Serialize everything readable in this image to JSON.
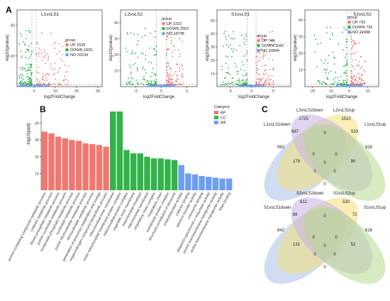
{
  "panel_labels": {
    "a": "A",
    "b": "B",
    "c": "C"
  },
  "colors": {
    "up": "#f07878",
    "down": "#2fb34a",
    "no": "#6f9fe6",
    "bp": "#f07870",
    "cc": "#33b24a",
    "mf": "#6d9ef0"
  },
  "chart_data": [
    {
      "type": "scatter",
      "title": "L1vsLS1",
      "xlabel": "log2FoldChange",
      "ylabel": "-log10(pvalue)",
      "xticks": [
        "0",
        "10",
        "20",
        "30"
      ],
      "yticks": [
        "20",
        "40"
      ],
      "xlim": [
        -8,
        32
      ],
      "ylim": [
        0,
        50
      ],
      "legend": {
        "title": "group",
        "placement": "center-right",
        "entries": [
          "UP 1539",
          "DOWN 1829",
          "NO 20234"
        ]
      }
    },
    {
      "type": "scatter",
      "title": "L2vsLS2",
      "xlabel": "log2FoldChange",
      "ylabel": "-log10(pvalue)",
      "xticks": [
        "-5",
        "0",
        "5"
      ],
      "yticks": [
        "10",
        "20",
        "30",
        "40"
      ],
      "xlim": [
        -8,
        7
      ],
      "ylim": [
        0,
        48
      ],
      "legend": {
        "title": "group",
        "placement": "top-right",
        "entries": [
          "UP 2222",
          "DOWN 2502",
          "NO 18736"
        ]
      }
    },
    {
      "type": "scatter",
      "title": "S1vsLS1",
      "xlabel": "log2FoldChange",
      "ylabel": "-log10(pvalue)",
      "xticks": [
        "-5",
        "0",
        "5"
      ],
      "yticks": [
        "10",
        "20",
        "30",
        "40",
        "50"
      ],
      "xlim": [
        -8,
        9
      ],
      "ylim": [
        0,
        58
      ],
      "legend": {
        "title": "group",
        "placement": "center-right",
        "entries": [
          "UP 740",
          "DOWN 1042",
          "NO 20844"
        ]
      }
    },
    {
      "type": "scatter",
      "title": "S2vsLS2",
      "xlabel": "log2FoldChange",
      "ylabel": "-log10(pvalue)",
      "xticks": [
        "-20",
        "-10",
        "0",
        "10"
      ],
      "yticks": [
        "10",
        "20",
        "30",
        "40"
      ],
      "xlim": [
        -24,
        16
      ],
      "ylim": [
        0,
        46
      ],
      "legend": {
        "title": "group",
        "placement": "top-right",
        "entries": [
          "UP 733",
          "DOWN 733",
          "NO 22488"
        ]
      }
    },
    {
      "type": "bar",
      "ylabel": "-log10(padj)",
      "yticks": [
        "10",
        "20",
        "30",
        "40"
      ],
      "ylim": [
        0,
        50
      ],
      "legend": {
        "title": "Category",
        "placement": "top-right",
        "entries": [
          "BP",
          "CC",
          "MF"
        ]
      },
      "categories": [
        "purine-containing compound metabolic process",
        "cofactor metabolic process",
        "ribose phosphate metabolic process",
        "purine nucleotide metabolic process",
        "nucleoside phosphate metabolic process",
        "nucleotide metabolic process",
        "purine ribonucleotide metabolic process",
        "ribonucleotide metabolic process",
        "generation of precursor metabolites and energy",
        "organonitrogen compound biosynthetic process",
        "mitochondrial inner membrane",
        "inner mitochondrial membrane protein complex",
        "mitochondrial protein complex",
        "organelle inner membrane",
        "mitochondrial envelope",
        "mitochondrial membrane",
        "respiratory chain complex",
        "respiratory chain",
        "membrane protein complex",
        "structural constituent of ribosome",
        "oxidoreductase activity",
        "cofactor binding",
        "electron transfer activity",
        "coenzyme binding",
        "ubiquinol-cytochrome-c reductase activity",
        "proton transmembrane transporter activity",
        "active transmembrane transporter activity",
        "RNA binding"
      ],
      "series_category": [
        "BP",
        "BP",
        "BP",
        "BP",
        "BP",
        "BP",
        "BP",
        "BP",
        "BP",
        "BP",
        "CC",
        "CC",
        "CC",
        "CC",
        "CC",
        "CC",
        "CC",
        "CC",
        "CC",
        "CC",
        "MF",
        "MF",
        "MF",
        "MF",
        "MF",
        "MF",
        "MF",
        "MF"
      ],
      "values": [
        35,
        34,
        32,
        31,
        30,
        29.5,
        28,
        27.5,
        27,
        26,
        47,
        47,
        24,
        22,
        22,
        20,
        19,
        19,
        18.5,
        18,
        15,
        10,
        9.5,
        8.5,
        8,
        7.5,
        7,
        7
      ]
    },
    {
      "type": "venn",
      "sets": [
        "L1vsLS1down",
        "L2vsLS2down",
        "L2vsLS2up",
        "L1vsLS1up"
      ],
      "regions": [
        "963",
        "1725",
        "1510",
        "916",
        "687",
        "0",
        "533",
        "179",
        "0",
        "90",
        "0",
        "0",
        "0",
        "0",
        "0"
      ]
    },
    {
      "type": "venn",
      "sets": [
        "S1vsLS1down",
        "S2vsLS2down",
        "S2vsLS2up",
        "S1vsLS1up"
      ],
      "regions": [
        "842",
        "612",
        "530",
        "616",
        "69",
        "0",
        "72",
        "131",
        "0",
        "52",
        "0",
        "0",
        "0",
        "0",
        "0"
      ]
    }
  ]
}
